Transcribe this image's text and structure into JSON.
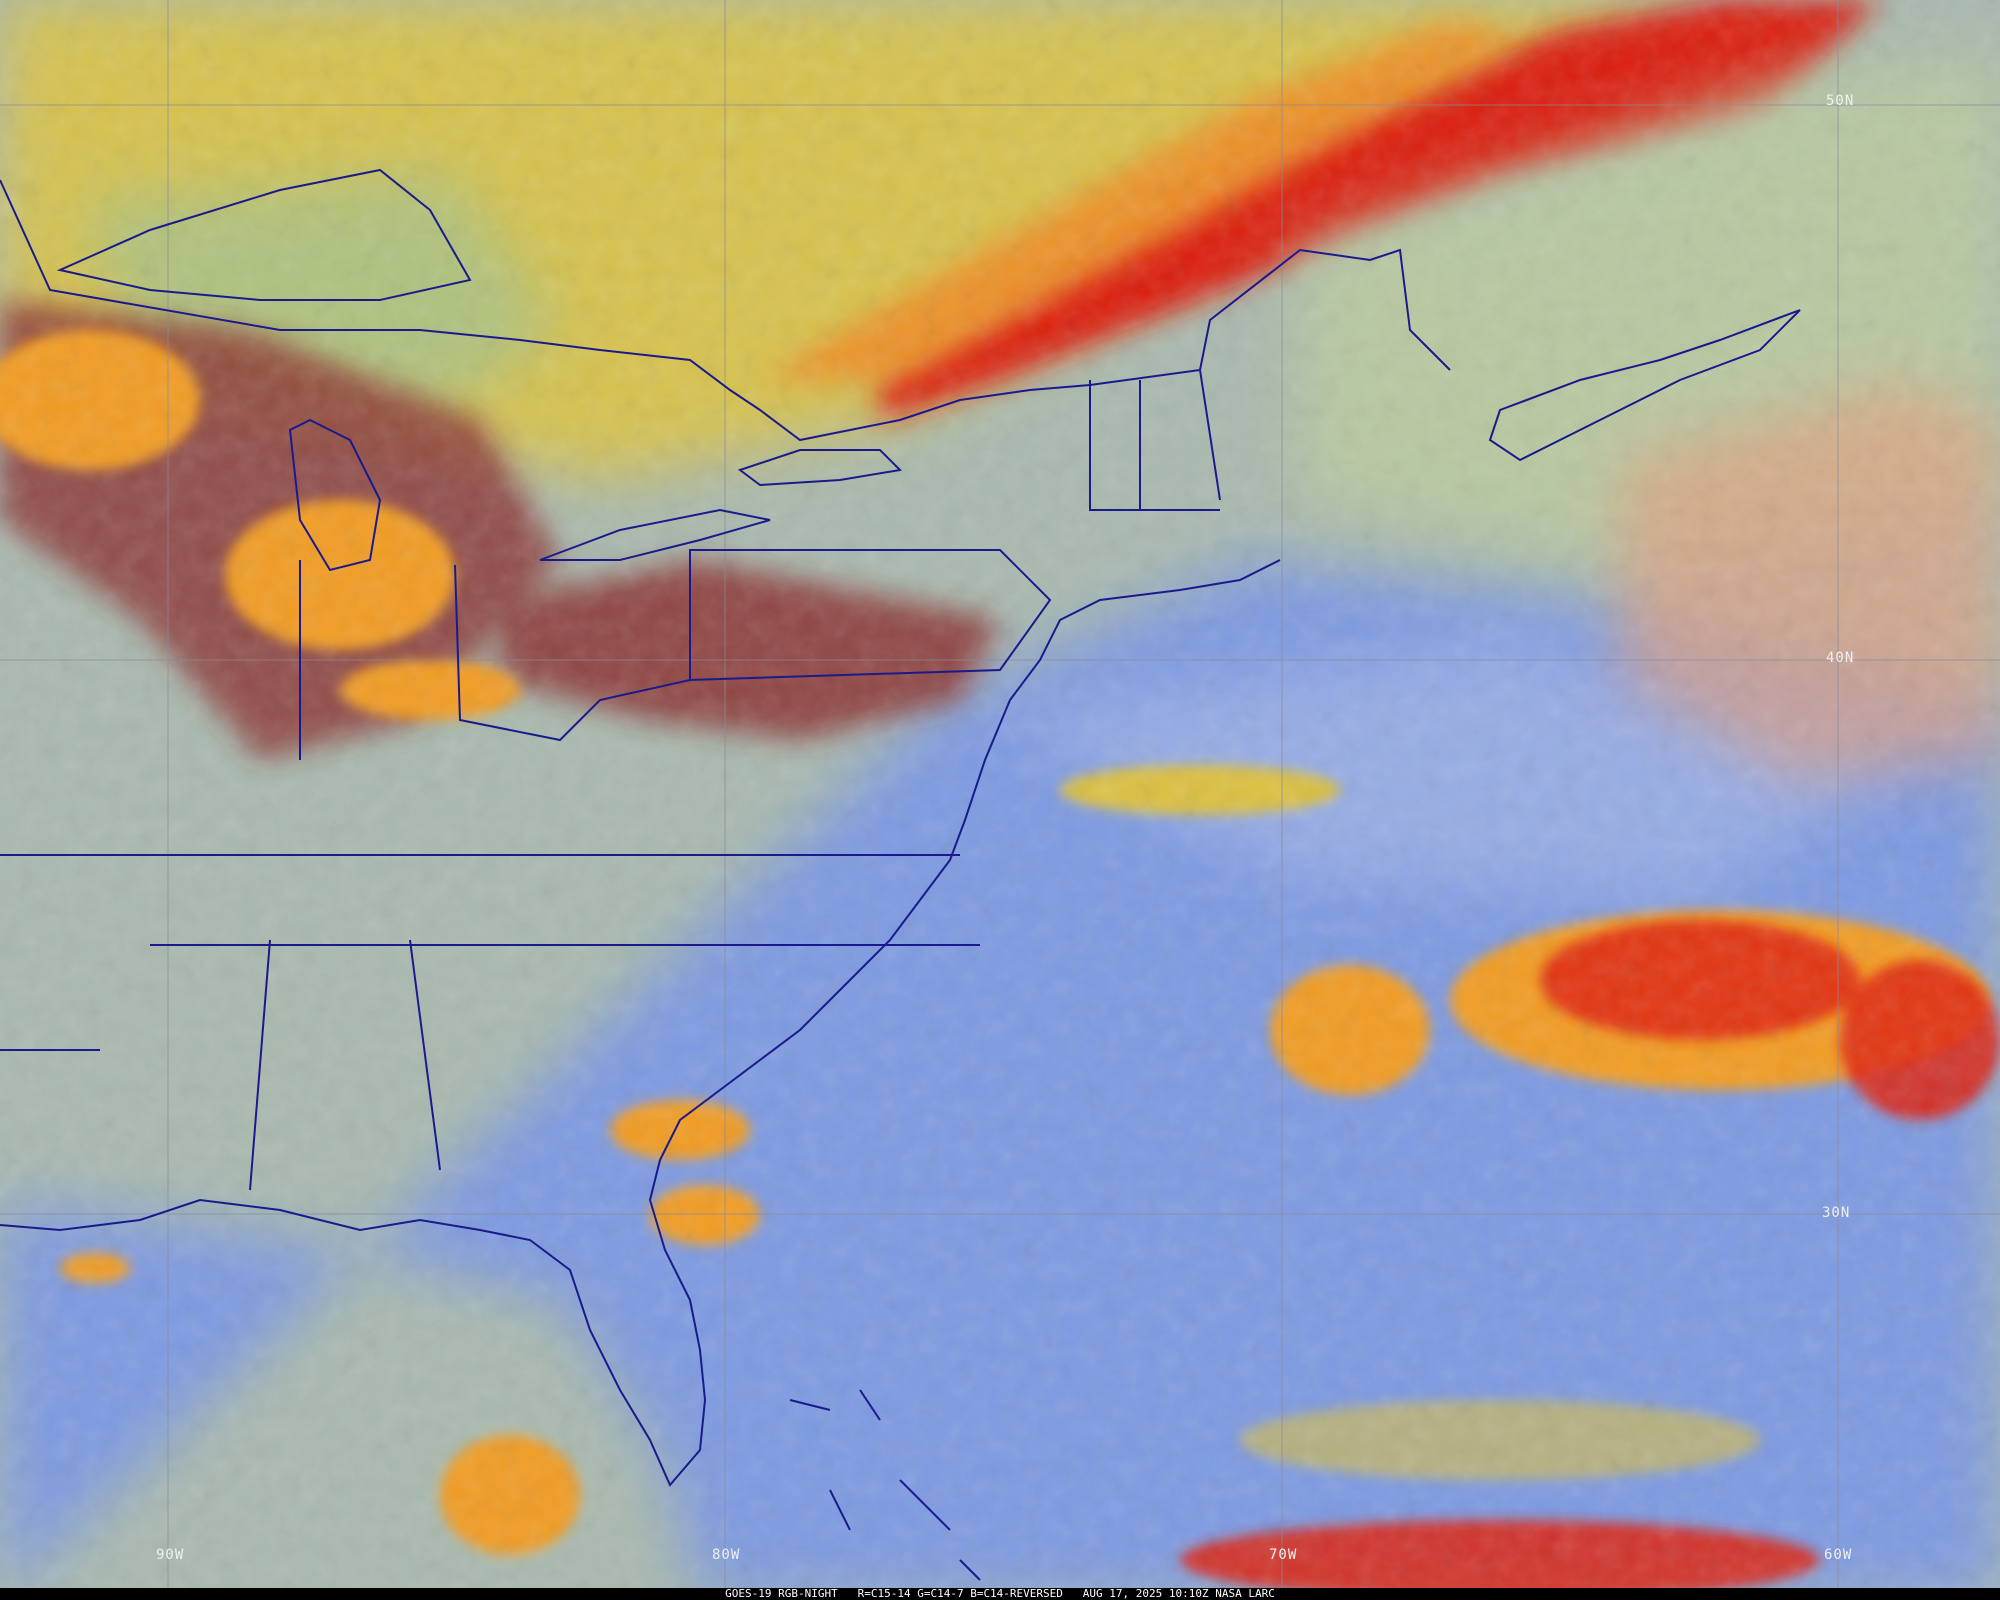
{
  "caption": {
    "satellite": "GOES-19 RGB-NIGHT",
    "channels": "R=C15-14 G=C14-7 B=C14-REVERSED",
    "datetime": "AUG 17, 2025 10:10Z NASA LARC"
  },
  "grid": {
    "latitudes": [
      "50N",
      "40N",
      "30N"
    ],
    "longitudes": [
      "90W",
      "80W",
      "70W",
      "60W"
    ]
  },
  "colors": {
    "land": "#a8b8a8",
    "ocean": "#7d9ae2",
    "high_cloud_yellow": "#d8c24c",
    "cloud_red": "#e02010",
    "convective_orange": "#f09a20",
    "boundaries": "#1a1a8c",
    "gridlines": "#8a8a9a"
  }
}
